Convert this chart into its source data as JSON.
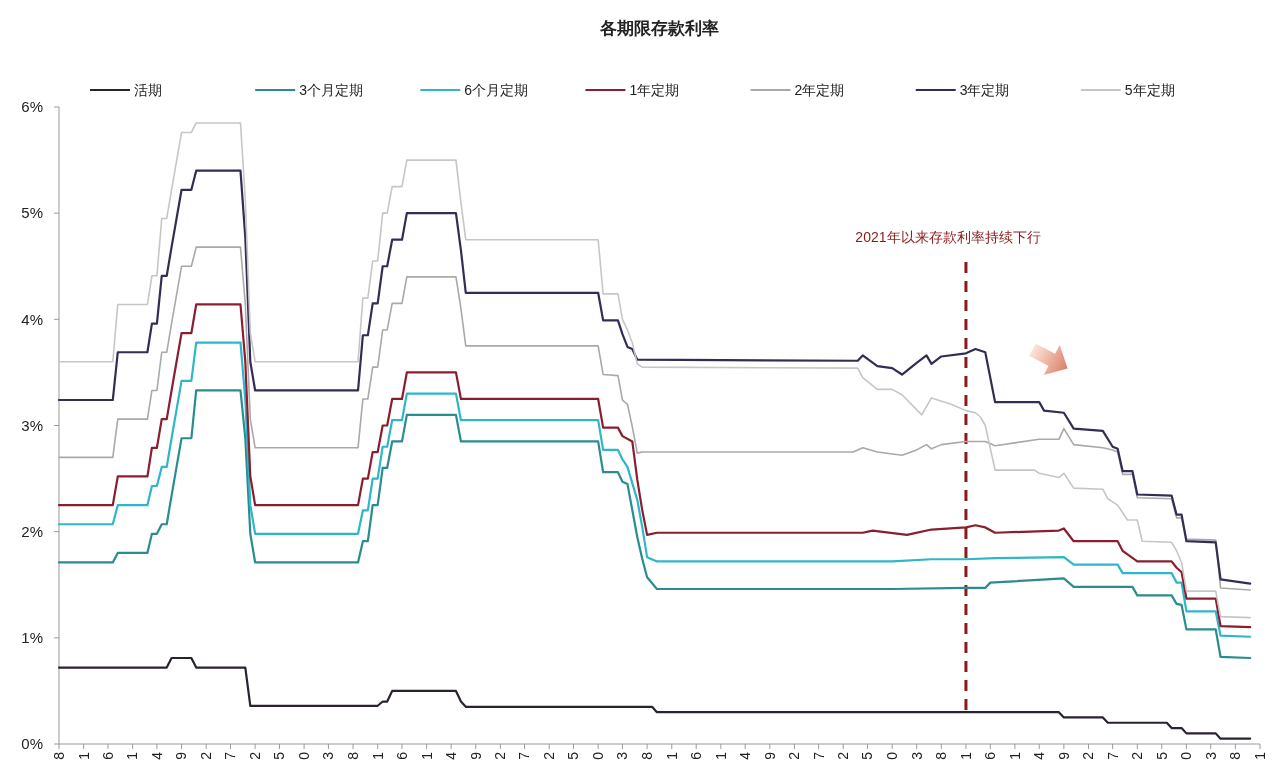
{
  "chart_data": {
    "type": "line",
    "title": "各期限存款利率",
    "legend": "top",
    "xlim": [
      "2005-08",
      "2026-01"
    ],
    "xticks": [
      {
        "value": "2005-08",
        "label": "8"
      },
      {
        "value": "2006-01",
        "label": "1"
      },
      {
        "value": "2006-06",
        "label": "6"
      },
      {
        "value": "2006-11",
        "label": "1"
      },
      {
        "value": "2007-04",
        "label": "4"
      },
      {
        "value": "2007-09",
        "label": "9"
      },
      {
        "value": "2008-02",
        "label": "2"
      },
      {
        "value": "2008-07",
        "label": "7"
      },
      {
        "value": "2008-12",
        "label": "2"
      },
      {
        "value": "2009-05",
        "label": "5"
      },
      {
        "value": "2009-10",
        "label": "0"
      },
      {
        "value": "2010-03",
        "label": "3"
      },
      {
        "value": "2010-08",
        "label": "8"
      },
      {
        "value": "2011-01",
        "label": "1"
      },
      {
        "value": "2011-06",
        "label": "6"
      },
      {
        "value": "2011-11",
        "label": "1"
      },
      {
        "value": "2012-04",
        "label": "4"
      },
      {
        "value": "2012-09",
        "label": "9"
      },
      {
        "value": "2013-02",
        "label": "2"
      },
      {
        "value": "2013-07",
        "label": "7"
      },
      {
        "value": "2013-12",
        "label": "2"
      },
      {
        "value": "2014-05",
        "label": "5"
      },
      {
        "value": "2014-10",
        "label": "0"
      },
      {
        "value": "2015-03",
        "label": "3"
      },
      {
        "value": "2015-08",
        "label": "8"
      },
      {
        "value": "2016-01",
        "label": "1"
      },
      {
        "value": "2016-06",
        "label": "6"
      },
      {
        "value": "2016-11",
        "label": "1"
      },
      {
        "value": "2017-04",
        "label": "4"
      },
      {
        "value": "2017-09",
        "label": "9"
      },
      {
        "value": "2018-02",
        "label": "2"
      },
      {
        "value": "2018-07",
        "label": "7"
      },
      {
        "value": "2018-12",
        "label": "2"
      },
      {
        "value": "2019-05",
        "label": "5"
      },
      {
        "value": "2019-10",
        "label": "0"
      },
      {
        "value": "2020-03",
        "label": "3"
      },
      {
        "value": "2020-08",
        "label": "8"
      },
      {
        "value": "2021-01",
        "label": "1"
      },
      {
        "value": "2021-06",
        "label": "6"
      },
      {
        "value": "2021-11",
        "label": "1"
      },
      {
        "value": "2022-04",
        "label": "4"
      },
      {
        "value": "2022-09",
        "label": "9"
      },
      {
        "value": "2023-02",
        "label": "2"
      },
      {
        "value": "2023-07",
        "label": "7"
      },
      {
        "value": "2023-12",
        "label": "2"
      },
      {
        "value": "2024-05",
        "label": "5"
      },
      {
        "value": "2024-10",
        "label": "0"
      },
      {
        "value": "2025-03",
        "label": "3"
      },
      {
        "value": "2025-08",
        "label": "8"
      },
      {
        "value": "2026-01",
        "label": "1"
      }
    ],
    "ylim": [
      0,
      6
    ],
    "yticks": [
      {
        "value": 0,
        "label": "0%"
      },
      {
        "value": 1,
        "label": "1%"
      },
      {
        "value": 2,
        "label": "2%"
      },
      {
        "value": 3,
        "label": "3%"
      },
      {
        "value": 4,
        "label": "4%"
      },
      {
        "value": 5,
        "label": "5%"
      },
      {
        "value": 6,
        "label": "6%"
      }
    ],
    "ref_lines": [
      {
        "axis": "x",
        "value": "2021-01",
        "label": "2021年以来存款利率持续下行",
        "color": "#8b1a1a",
        "line_style": "dashed"
      }
    ],
    "series": [
      {
        "name": "活期",
        "color": "#2b2230",
        "x": [
          "2005-08",
          "2007-06",
          "2007-07",
          "2007-11",
          "2007-12",
          "2008-10",
          "2008-11",
          "2011-01",
          "2011-02",
          "2011-03",
          "2011-04",
          "2012-05",
          "2012-06",
          "2012-07",
          "2015-09",
          "2015-10",
          "2022-08",
          "2022-09",
          "2023-05",
          "2023-06",
          "2024-06",
          "2024-07",
          "2024-09",
          "2024-10",
          "2025-04",
          "2025-05",
          "2025-11"
        ],
        "values": [
          0.72,
          0.72,
          0.81,
          0.81,
          0.72,
          0.72,
          0.36,
          0.36,
          0.4,
          0.4,
          0.5,
          0.5,
          0.4,
          0.35,
          0.35,
          0.3,
          0.3,
          0.25,
          0.25,
          0.2,
          0.2,
          0.15,
          0.15,
          0.1,
          0.1,
          0.05,
          0.05
        ]
      },
      {
        "name": "3个月定期",
        "color": "#2a8c8e",
        "x": [
          "2005-08",
          "2006-07",
          "2006-08",
          "2007-02",
          "2007-03",
          "2007-04",
          "2007-05",
          "2007-06",
          "2007-07",
          "2007-08",
          "2007-09",
          "2007-11",
          "2007-12",
          "2008-09",
          "2008-10",
          "2008-11",
          "2008-12",
          "2010-09",
          "2010-10",
          "2010-11",
          "2010-12",
          "2011-01",
          "2011-02",
          "2011-03",
          "2011-04",
          "2011-06",
          "2011-07",
          "2012-05",
          "2012-06",
          "2014-10",
          "2014-11",
          "2015-02",
          "2015-03",
          "2015-04",
          "2015-06",
          "2015-07",
          "2015-08",
          "2015-10",
          "2019-10",
          "2021-01",
          "2021-05",
          "2021-06",
          "2022-09",
          "2022-11",
          "2023-11",
          "2023-12",
          "2024-07",
          "2024-08",
          "2024-09",
          "2024-10",
          "2025-04",
          "2025-05",
          "2025-11"
        ],
        "values": [
          1.71,
          1.71,
          1.8,
          1.8,
          1.98,
          1.98,
          2.07,
          2.07,
          2.34,
          2.61,
          2.88,
          2.88,
          3.33,
          3.33,
          2.88,
          1.98,
          1.71,
          1.71,
          1.91,
          1.91,
          2.25,
          2.25,
          2.6,
          2.6,
          2.85,
          2.85,
          3.1,
          3.1,
          2.85,
          2.85,
          2.56,
          2.56,
          2.47,
          2.45,
          1.95,
          1.75,
          1.57,
          1.46,
          1.46,
          1.47,
          1.47,
          1.52,
          1.56,
          1.48,
          1.48,
          1.4,
          1.4,
          1.32,
          1.31,
          1.08,
          1.08,
          0.82,
          0.81
        ]
      },
      {
        "name": "6个月定期",
        "color": "#2fb6c9",
        "x": [
          "2005-08",
          "2006-07",
          "2006-08",
          "2007-02",
          "2007-03",
          "2007-04",
          "2007-05",
          "2007-06",
          "2007-07",
          "2007-08",
          "2007-09",
          "2007-11",
          "2007-12",
          "2008-09",
          "2008-10",
          "2008-11",
          "2008-12",
          "2010-09",
          "2010-10",
          "2010-11",
          "2010-12",
          "2011-01",
          "2011-02",
          "2011-03",
          "2011-04",
          "2011-06",
          "2011-07",
          "2012-05",
          "2012-06",
          "2014-10",
          "2014-11",
          "2015-02",
          "2015-03",
          "2015-04",
          "2015-06",
          "2015-07",
          "2015-08",
          "2015-10",
          "2019-10",
          "2020-06",
          "2021-01",
          "2021-07",
          "2022-09",
          "2022-11",
          "2023-08",
          "2023-09",
          "2024-07",
          "2024-08",
          "2024-09",
          "2024-10",
          "2025-04",
          "2025-05",
          "2025-11"
        ],
        "values": [
          2.07,
          2.07,
          2.25,
          2.25,
          2.43,
          2.43,
          2.61,
          2.61,
          2.88,
          3.15,
          3.42,
          3.42,
          3.78,
          3.78,
          3.24,
          2.25,
          1.98,
          1.98,
          2.2,
          2.2,
          2.5,
          2.5,
          2.8,
          2.8,
          3.05,
          3.05,
          3.3,
          3.3,
          3.05,
          3.05,
          2.77,
          2.77,
          2.68,
          2.61,
          2.3,
          2.05,
          1.76,
          1.72,
          1.72,
          1.74,
          1.74,
          1.75,
          1.76,
          1.69,
          1.69,
          1.61,
          1.61,
          1.52,
          1.52,
          1.25,
          1.25,
          1.02,
          1.01
        ]
      },
      {
        "name": "1年定期",
        "color": "#8b1e2e",
        "x": [
          "2005-08",
          "2006-07",
          "2006-08",
          "2007-02",
          "2007-03",
          "2007-04",
          "2007-05",
          "2007-06",
          "2007-07",
          "2007-08",
          "2007-09",
          "2007-11",
          "2007-12",
          "2008-09",
          "2008-10",
          "2008-11",
          "2008-12",
          "2010-09",
          "2010-10",
          "2010-11",
          "2010-12",
          "2011-01",
          "2011-02",
          "2011-03",
          "2011-04",
          "2011-06",
          "2011-07",
          "2012-05",
          "2012-06",
          "2014-10",
          "2014-11",
          "2015-02",
          "2015-03",
          "2015-05",
          "2015-06",
          "2015-07",
          "2015-08",
          "2015-10",
          "2019-04",
          "2019-06",
          "2020-01",
          "2020-06",
          "2021-01",
          "2021-03",
          "2021-05",
          "2021-07",
          "2022-08",
          "2022-09",
          "2022-11",
          "2023-08",
          "2023-09",
          "2023-12",
          "2024-07",
          "2024-08",
          "2024-09",
          "2024-10",
          "2025-04",
          "2025-05",
          "2025-11"
        ],
        "values": [
          2.25,
          2.25,
          2.52,
          2.52,
          2.79,
          2.79,
          3.06,
          3.06,
          3.33,
          3.6,
          3.87,
          3.87,
          4.14,
          4.14,
          3.6,
          2.52,
          2.25,
          2.25,
          2.5,
          2.5,
          2.75,
          2.75,
          3.0,
          3.0,
          3.25,
          3.25,
          3.5,
          3.5,
          3.25,
          3.25,
          2.98,
          2.98,
          2.9,
          2.85,
          2.49,
          2.21,
          1.97,
          1.99,
          1.99,
          2.01,
          1.97,
          2.02,
          2.04,
          2.06,
          2.04,
          1.99,
          2.01,
          2.03,
          1.91,
          1.91,
          1.82,
          1.72,
          1.72,
          1.66,
          1.62,
          1.37,
          1.37,
          1.11,
          1.1
        ]
      },
      {
        "name": "2年定期",
        "color": "#a9a9a9",
        "x": [
          "2005-08",
          "2006-07",
          "2006-08",
          "2007-02",
          "2007-03",
          "2007-04",
          "2007-05",
          "2007-06",
          "2007-07",
          "2007-08",
          "2007-09",
          "2007-11",
          "2007-12",
          "2008-09",
          "2008-10",
          "2008-11",
          "2008-12",
          "2010-09",
          "2010-10",
          "2010-11",
          "2010-12",
          "2011-01",
          "2011-02",
          "2011-03",
          "2011-04",
          "2011-06",
          "2011-07",
          "2012-05",
          "2012-06",
          "2012-07",
          "2014-10",
          "2014-11",
          "2015-02",
          "2015-03",
          "2015-04",
          "2015-05",
          "2015-06",
          "2015-07",
          "2019-02",
          "2019-04",
          "2019-07",
          "2019-12",
          "2020-03",
          "2020-05",
          "2020-06",
          "2020-08",
          "2021-01",
          "2021-05",
          "2021-07",
          "2022-04",
          "2022-08",
          "2022-09",
          "2022-11",
          "2023-05",
          "2023-07",
          "2023-08",
          "2023-09",
          "2023-11",
          "2023-12",
          "2024-07",
          "2024-08",
          "2024-09",
          "2024-10",
          "2025-04",
          "2025-05",
          "2025-11"
        ],
        "values": [
          2.7,
          2.7,
          3.06,
          3.06,
          3.33,
          3.33,
          3.69,
          3.69,
          3.96,
          4.23,
          4.5,
          4.5,
          4.68,
          4.68,
          4.14,
          3.06,
          2.79,
          2.79,
          3.25,
          3.25,
          3.55,
          3.55,
          3.9,
          3.9,
          4.15,
          4.15,
          4.4,
          4.4,
          4.1,
          3.75,
          3.75,
          3.48,
          3.47,
          3.24,
          3.2,
          2.99,
          2.74,
          2.75,
          2.75,
          2.79,
          2.75,
          2.72,
          2.77,
          2.82,
          2.78,
          2.82,
          2.85,
          2.85,
          2.81,
          2.87,
          2.87,
          2.97,
          2.82,
          2.79,
          2.77,
          2.75,
          2.54,
          2.54,
          2.32,
          2.31,
          2.13,
          2.13,
          1.93,
          1.92,
          1.47,
          1.45
        ]
      },
      {
        "name": "3年定期",
        "color": "#332c55",
        "x": [
          "2005-08",
          "2006-07",
          "2006-08",
          "2007-02",
          "2007-03",
          "2007-04",
          "2007-05",
          "2007-06",
          "2007-07",
          "2007-08",
          "2007-09",
          "2007-11",
          "2007-12",
          "2008-09",
          "2008-10",
          "2008-11",
          "2008-12",
          "2010-09",
          "2010-10",
          "2010-11",
          "2010-12",
          "2011-01",
          "2011-02",
          "2011-03",
          "2011-04",
          "2011-06",
          "2011-07",
          "2012-05",
          "2012-06",
          "2012-07",
          "2014-10",
          "2014-11",
          "2015-02",
          "2015-03",
          "2015-04",
          "2015-05",
          "2015-06",
          "2019-03",
          "2019-04",
          "2019-07",
          "2019-10",
          "2019-12",
          "2020-03",
          "2020-05",
          "2020-06",
          "2020-08",
          "2021-01",
          "2021-03",
          "2021-05",
          "2021-07",
          "2022-04",
          "2022-05",
          "2022-09",
          "2022-11",
          "2023-05",
          "2023-07",
          "2023-08",
          "2023-09",
          "2023-11",
          "2023-12",
          "2024-07",
          "2024-08",
          "2024-09",
          "2024-10",
          "2025-04",
          "2025-05",
          "2025-11"
        ],
        "values": [
          3.24,
          3.24,
          3.69,
          3.69,
          3.96,
          3.96,
          4.41,
          4.41,
          4.68,
          4.95,
          5.22,
          5.22,
          5.4,
          5.4,
          4.77,
          3.6,
          3.33,
          3.33,
          3.85,
          3.85,
          4.15,
          4.15,
          4.5,
          4.5,
          4.75,
          4.75,
          5.0,
          5.0,
          4.65,
          4.25,
          4.25,
          3.99,
          3.99,
          3.86,
          3.74,
          3.72,
          3.62,
          3.61,
          3.66,
          3.56,
          3.54,
          3.48,
          3.59,
          3.66,
          3.58,
          3.65,
          3.68,
          3.72,
          3.69,
          3.22,
          3.22,
          3.14,
          3.12,
          2.97,
          2.95,
          2.8,
          2.78,
          2.57,
          2.57,
          2.35,
          2.34,
          2.16,
          2.16,
          1.91,
          1.9,
          1.55,
          1.51
        ]
      },
      {
        "name": "5年定期",
        "color": "#c6c6c6",
        "x": [
          "2005-08",
          "2006-07",
          "2006-08",
          "2007-02",
          "2007-03",
          "2007-04",
          "2007-05",
          "2007-06",
          "2007-07",
          "2007-08",
          "2007-09",
          "2007-11",
          "2007-12",
          "2008-09",
          "2008-10",
          "2008-11",
          "2008-12",
          "2010-09",
          "2010-10",
          "2010-11",
          "2010-12",
          "2011-01",
          "2011-02",
          "2011-03",
          "2011-04",
          "2011-06",
          "2011-07",
          "2012-05",
          "2012-06",
          "2012-07",
          "2014-10",
          "2014-11",
          "2015-02",
          "2015-03",
          "2015-04",
          "2015-05",
          "2015-06",
          "2015-07",
          "2019-03",
          "2019-04",
          "2019-07",
          "2019-10",
          "2019-12",
          "2020-04",
          "2020-06",
          "2020-10",
          "2021-01",
          "2021-03",
          "2021-04",
          "2021-05",
          "2021-07",
          "2022-03",
          "2022-04",
          "2022-08",
          "2022-09",
          "2022-11",
          "2023-05",
          "2023-06",
          "2023-08",
          "2023-10",
          "2023-12",
          "2024-01",
          "2024-07",
          "2024-08",
          "2024-09",
          "2024-10",
          "2025-04",
          "2025-05",
          "2025-11"
        ],
        "values": [
          3.6,
          3.6,
          4.14,
          4.14,
          4.41,
          4.41,
          4.95,
          4.95,
          5.22,
          5.49,
          5.76,
          5.76,
          5.85,
          5.85,
          5.13,
          3.87,
          3.6,
          3.6,
          4.2,
          4.2,
          4.55,
          4.55,
          5.0,
          5.0,
          5.25,
          5.25,
          5.5,
          5.5,
          5.1,
          4.75,
          4.75,
          4.24,
          4.24,
          4.0,
          3.9,
          3.78,
          3.58,
          3.55,
          3.54,
          3.45,
          3.34,
          3.34,
          3.29,
          3.1,
          3.26,
          3.2,
          3.14,
          3.12,
          3.08,
          3.0,
          2.58,
          2.58,
          2.55,
          2.51,
          2.55,
          2.41,
          2.4,
          2.31,
          2.25,
          2.11,
          2.11,
          1.91,
          1.9,
          1.82,
          1.71,
          1.44,
          1.44,
          1.2,
          1.19
        ]
      }
    ]
  }
}
